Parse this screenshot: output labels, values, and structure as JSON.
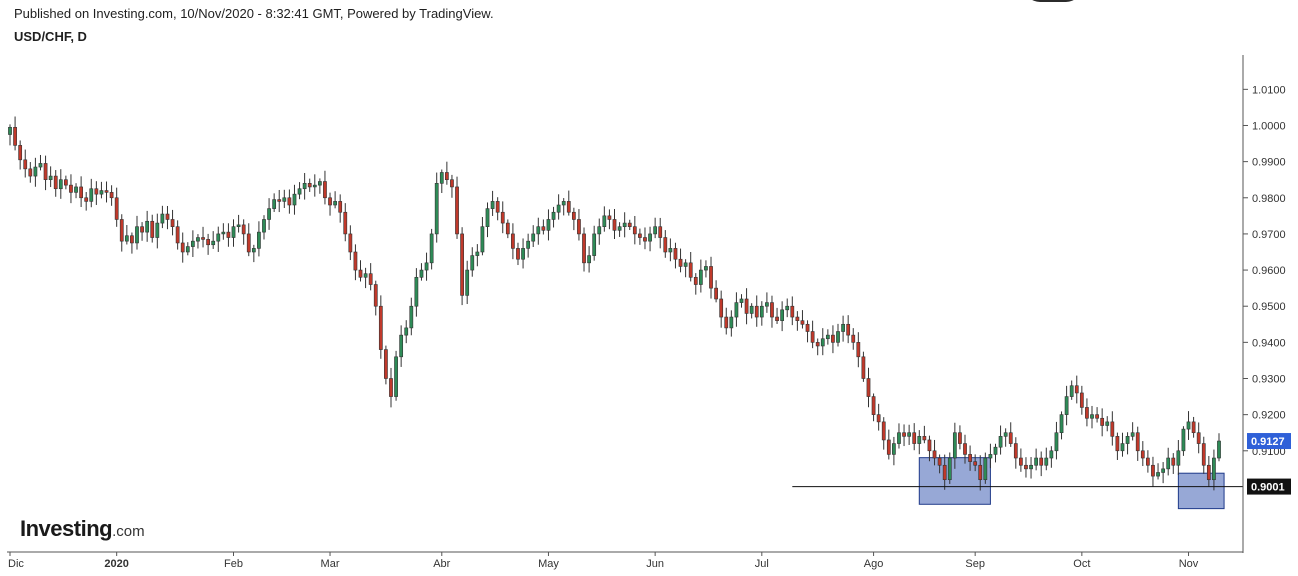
{
  "header": {
    "published": "Published on Investing.com, 10/Nov/2020 - 8:32:41 GMT, Powered by TradingView.",
    "symbol": "USD/CHF, D"
  },
  "brand": {
    "name": "Investing",
    "suffix": ".com"
  },
  "colors": {
    "up": "#2e8b57",
    "down": "#c0392b",
    "wick": "#333333",
    "box_fill": "#6f86c6",
    "box_stroke": "#1f3a8a",
    "price_badge": "#2f60d8",
    "level_badge": "#111111"
  },
  "chart_data": {
    "type": "candlestick",
    "instrument": "USD/CHF",
    "timeframe": "D",
    "ylim": [
      0.882,
      1.0195
    ],
    "y_ticks": [
      "1.0100",
      "1.0000",
      "0.9900",
      "0.9800",
      "0.9700",
      "0.9600",
      "0.9500",
      "0.9400",
      "0.9300",
      "0.9200",
      "0.9100"
    ],
    "x_labels": [
      {
        "label": "Dic",
        "day": 0
      },
      {
        "label": "2020",
        "day": 21
      },
      {
        "label": "Feb",
        "day": 44
      },
      {
        "label": "Mar",
        "day": 63
      },
      {
        "label": "Abr",
        "day": 85
      },
      {
        "label": "May",
        "day": 106
      },
      {
        "label": "Jun",
        "day": 127
      },
      {
        "label": "Jul",
        "day": 148
      },
      {
        "label": "Ago",
        "day": 170
      },
      {
        "label": "Sep",
        "day": 190
      },
      {
        "label": "Oct",
        "day": 211
      },
      {
        "label": "Nov",
        "day": 232
      }
    ],
    "last_price": "0.9127",
    "support_level": {
      "label": "0.9001",
      "value": 0.9001,
      "from_day": 154
    },
    "highlight_boxes": [
      {
        "from_day": 179,
        "to_day": 193,
        "low": 0.8952,
        "high": 0.9081
      },
      {
        "from_day": 230,
        "to_day": 239,
        "low": 0.894,
        "high": 0.9038
      }
    ],
    "closes": [
      0.9995,
      0.9945,
      0.9905,
      0.988,
      0.986,
      0.9885,
      0.9895,
      0.985,
      0.986,
      0.9825,
      0.985,
      0.9835,
      0.9815,
      0.983,
      0.98,
      0.979,
      0.9825,
      0.981,
      0.982,
      0.9815,
      0.98,
      0.974,
      0.968,
      0.9695,
      0.9675,
      0.972,
      0.9705,
      0.9735,
      0.969,
      0.973,
      0.9755,
      0.974,
      0.972,
      0.9675,
      0.965,
      0.9665,
      0.968,
      0.969,
      0.9685,
      0.967,
      0.968,
      0.97,
      0.9705,
      0.969,
      0.972,
      0.9725,
      0.97,
      0.965,
      0.966,
      0.9705,
      0.974,
      0.977,
      0.9795,
      0.979,
      0.98,
      0.978,
      0.981,
      0.9825,
      0.984,
      0.983,
      0.9835,
      0.9845,
      0.98,
      0.978,
      0.979,
      0.976,
      0.97,
      0.965,
      0.96,
      0.958,
      0.959,
      0.956,
      0.95,
      0.938,
      0.93,
      0.925,
      0.936,
      0.942,
      0.944,
      0.95,
      0.958,
      0.96,
      0.962,
      0.97,
      0.984,
      0.987,
      0.985,
      0.983,
      0.97,
      0.953,
      0.96,
      0.964,
      0.965,
      0.972,
      0.977,
      0.979,
      0.976,
      0.973,
      0.97,
      0.966,
      0.963,
      0.966,
      0.968,
      0.97,
      0.972,
      0.971,
      0.974,
      0.976,
      0.978,
      0.979,
      0.976,
      0.974,
      0.97,
      0.962,
      0.964,
      0.97,
      0.972,
      0.975,
      0.974,
      0.971,
      0.972,
      0.973,
      0.972,
      0.97,
      0.969,
      0.968,
      0.97,
      0.972,
      0.969,
      0.965,
      0.966,
      0.963,
      0.961,
      0.962,
      0.958,
      0.956,
      0.96,
      0.961,
      0.955,
      0.952,
      0.947,
      0.944,
      0.947,
      0.951,
      0.952,
      0.948,
      0.95,
      0.947,
      0.95,
      0.951,
      0.947,
      0.946,
      0.949,
      0.95,
      0.947,
      0.946,
      0.945,
      0.943,
      0.94,
      0.939,
      0.941,
      0.942,
      0.94,
      0.943,
      0.945,
      0.942,
      0.94,
      0.936,
      0.93,
      0.925,
      0.92,
      0.918,
      0.913,
      0.909,
      0.912,
      0.915,
      0.914,
      0.915,
      0.912,
      0.914,
      0.913,
      0.91,
      0.908,
      0.906,
      0.902,
      0.908,
      0.915,
      0.912,
      0.909,
      0.907,
      0.906,
      0.902,
      0.908,
      0.909,
      0.911,
      0.914,
      0.915,
      0.912,
      0.908,
      0.906,
      0.905,
      0.906,
      0.908,
      0.906,
      0.908,
      0.91,
      0.915,
      0.92,
      0.925,
      0.928,
      0.926,
      0.922,
      0.919,
      0.92,
      0.919,
      0.917,
      0.918,
      0.914,
      0.91,
      0.912,
      0.914,
      0.915,
      0.91,
      0.908,
      0.906,
      0.903,
      0.904,
      0.905,
      0.908,
      0.906,
      0.91,
      0.916,
      0.918,
      0.915,
      0.912,
      0.906,
      0.902,
      0.908,
      0.9127
    ]
  }
}
